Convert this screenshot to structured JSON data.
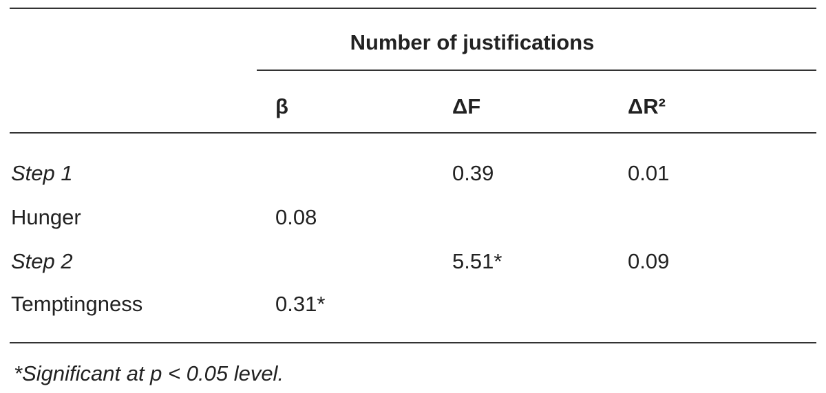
{
  "table": {
    "group_header": "Number of justifications",
    "columns": [
      "β",
      "ΔF",
      "ΔR²"
    ],
    "rows": [
      {
        "cells": [
          "Step 1",
          null,
          "0.39",
          "0.01"
        ],
        "italic": true
      },
      {
        "cells": [
          "Hunger",
          "0.08",
          null,
          null
        ],
        "italic": false
      },
      {
        "cells": [
          "Step 2",
          null,
          "5.51*",
          "0.09"
        ],
        "italic": true
      },
      {
        "cells": [
          "Temptingness",
          "0.31*",
          null,
          null
        ],
        "italic": false
      }
    ],
    "footnote": "*Significant at p < 0.05 level."
  }
}
